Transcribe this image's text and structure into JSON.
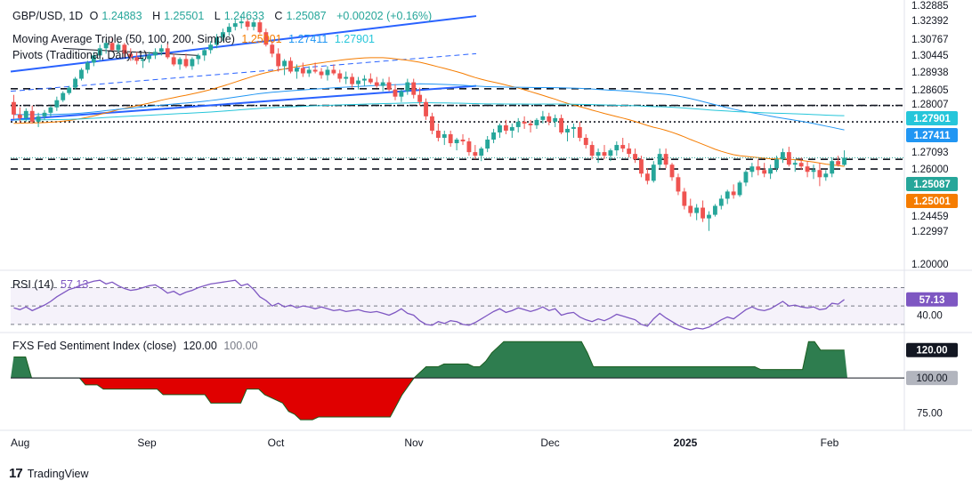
{
  "header": {
    "symbol": "GBP/USD, 1D",
    "open_label": "O",
    "open": "1.24883",
    "high_label": "H",
    "high": "1.25501",
    "low_label": "L",
    "low": "1.24633",
    "close_label": "C",
    "close": "1.25087",
    "change": "+0.00202 (+0.16%)"
  },
  "indicators": {
    "ma_label": "Moving Average Triple (50, 100, 200, Simple)",
    "ma50": "1.25001",
    "ma100": "1.27411",
    "ma200": "1.27901",
    "pivots_label": "Pivots (Traditional, Daily, 1)"
  },
  "rsi": {
    "label": "RSI (14)",
    "value": "57.13"
  },
  "sentiment": {
    "label": "FXS Fed Sentiment Index (close)",
    "value": "120.00",
    "baseline": "100.00"
  },
  "footer": {
    "brand": "TradingView"
  },
  "colors": {
    "up": "#26a69a",
    "down": "#ef5350",
    "ma50": "#f57c00",
    "ma100": "#2196f3",
    "ma200": "#26c6da",
    "trend": "#2962ff",
    "rsi": "#7e57c2",
    "fill_pos": "#2e7d4f",
    "fill_neg": "#e00000"
  },
  "chart_data": [
    {
      "type": "candlestick",
      "title": "GBP/USD, 1D",
      "x_ticks": [
        "Aug",
        "Sep",
        "Oct",
        "Nov",
        "Dec",
        "2025",
        "Feb"
      ],
      "y_ticks": [
        "1.32885",
        "1.32392",
        "1.30767",
        "1.30445",
        "1.28938",
        "1.28605",
        "1.28007",
        "1.27901",
        "1.27411",
        "1.27093",
        "1.26000",
        "1.25087",
        "1.25001",
        "1.24459",
        "1.22997",
        "1.20000"
      ],
      "ylim": [
        1.19,
        1.335
      ],
      "pivot_levels": [
        1.2894,
        1.2801,
        1.2709,
        1.25,
        1.2446
      ],
      "ohlc": [
        [
          1.282,
          1.286,
          1.2725,
          1.275
        ],
        [
          1.275,
          1.279,
          1.2705,
          1.273
        ],
        [
          1.273,
          1.2785,
          1.271,
          1.277
        ],
        [
          1.277,
          1.28,
          1.27,
          1.271
        ],
        [
          1.271,
          1.276,
          1.268,
          1.274
        ],
        [
          1.274,
          1.2775,
          1.272,
          1.276
        ],
        [
          1.276,
          1.28,
          1.274,
          1.279
        ],
        [
          1.279,
          1.285,
          1.277,
          1.283
        ],
        [
          1.283,
          1.288,
          1.282,
          1.287
        ],
        [
          1.287,
          1.291,
          1.286,
          1.29
        ],
        [
          1.29,
          1.296,
          1.289,
          1.295
        ],
        [
          1.295,
          1.301,
          1.294,
          1.3
        ],
        [
          1.3,
          1.305,
          1.298,
          1.304
        ],
        [
          1.304,
          1.31,
          1.302,
          1.308
        ],
        [
          1.308,
          1.314,
          1.305,
          1.312
        ],
        [
          1.312,
          1.317,
          1.309,
          1.315
        ],
        [
          1.315,
          1.318,
          1.31,
          1.311
        ],
        [
          1.311,
          1.316,
          1.309,
          1.314
        ],
        [
          1.314,
          1.315,
          1.307,
          1.309
        ],
        [
          1.309,
          1.312,
          1.305,
          1.307
        ],
        [
          1.307,
          1.31,
          1.303,
          1.305
        ],
        [
          1.305,
          1.308,
          1.301,
          1.306
        ],
        [
          1.306,
          1.31,
          1.304,
          1.308
        ],
        [
          1.308,
          1.312,
          1.306,
          1.31
        ],
        [
          1.31,
          1.314,
          1.308,
          1.312
        ],
        [
          1.312,
          1.315,
          1.306,
          1.307
        ],
        [
          1.307,
          1.309,
          1.302,
          1.303
        ],
        [
          1.303,
          1.307,
          1.3,
          1.306
        ],
        [
          1.306,
          1.309,
          1.301,
          1.302
        ],
        [
          1.302,
          1.307,
          1.3,
          1.306
        ],
        [
          1.306,
          1.309,
          1.303,
          1.308
        ],
        [
          1.308,
          1.312,
          1.305,
          1.311
        ],
        [
          1.311,
          1.316,
          1.309,
          1.314
        ],
        [
          1.314,
          1.32,
          1.312,
          1.318
        ],
        [
          1.318,
          1.323,
          1.316,
          1.321
        ],
        [
          1.321,
          1.326,
          1.319,
          1.324
        ],
        [
          1.324,
          1.328,
          1.322,
          1.326
        ],
        [
          1.326,
          1.33,
          1.323,
          1.327
        ],
        [
          1.327,
          1.329,
          1.322,
          1.324
        ],
        [
          1.324,
          1.328,
          1.322,
          1.3265
        ],
        [
          1.3265,
          1.328,
          1.32,
          1.321
        ],
        [
          1.321,
          1.323,
          1.313,
          1.314
        ],
        [
          1.314,
          1.316,
          1.307,
          1.309
        ],
        [
          1.309,
          1.312,
          1.299,
          1.302
        ],
        [
          1.302,
          1.306,
          1.297,
          1.305
        ],
        [
          1.305,
          1.307,
          1.298,
          1.299
        ],
        [
          1.299,
          1.303,
          1.295,
          1.301
        ],
        [
          1.301,
          1.304,
          1.296,
          1.298
        ],
        [
          1.298,
          1.302,
          1.296,
          1.3
        ],
        [
          1.3,
          1.304,
          1.298,
          1.299
        ],
        [
          1.299,
          1.301,
          1.295,
          1.297
        ],
        [
          1.297,
          1.302,
          1.294,
          1.3
        ],
        [
          1.3,
          1.303,
          1.297,
          1.298
        ],
        [
          1.298,
          1.3,
          1.293,
          1.295
        ],
        [
          1.295,
          1.299,
          1.292,
          1.296
        ],
        [
          1.296,
          1.298,
          1.29,
          1.292
        ],
        [
          1.292,
          1.296,
          1.289,
          1.294
        ],
        [
          1.294,
          1.297,
          1.291,
          1.295
        ],
        [
          1.295,
          1.298,
          1.292,
          1.293
        ],
        [
          1.293,
          1.296,
          1.29,
          1.291
        ],
        [
          1.291,
          1.295,
          1.288,
          1.293
        ],
        [
          1.293,
          1.296,
          1.288,
          1.289
        ],
        [
          1.289,
          1.292,
          1.283,
          1.285
        ],
        [
          1.285,
          1.289,
          1.282,
          1.288
        ],
        [
          1.288,
          1.295,
          1.286,
          1.293
        ],
        [
          1.293,
          1.295,
          1.284,
          1.286
        ],
        [
          1.286,
          1.29,
          1.28,
          1.282
        ],
        [
          1.282,
          1.284,
          1.272,
          1.274
        ],
        [
          1.274,
          1.276,
          1.264,
          1.266
        ],
        [
          1.266,
          1.27,
          1.26,
          1.262
        ],
        [
          1.262,
          1.266,
          1.258,
          1.264
        ],
        [
          1.264,
          1.266,
          1.257,
          1.259
        ],
        [
          1.259,
          1.262,
          1.255,
          1.261
        ],
        [
          1.261,
          1.264,
          1.258,
          1.26
        ],
        [
          1.26,
          1.262,
          1.252,
          1.254
        ],
        [
          1.254,
          1.258,
          1.25,
          1.252
        ],
        [
          1.252,
          1.257,
          1.249,
          1.256
        ],
        [
          1.256,
          1.263,
          1.254,
          1.261
        ],
        [
          1.261,
          1.267,
          1.259,
          1.265
        ],
        [
          1.265,
          1.27,
          1.262,
          1.269
        ],
        [
          1.269,
          1.272,
          1.264,
          1.266
        ],
        [
          1.266,
          1.27,
          1.262,
          1.268
        ],
        [
          1.268,
          1.273,
          1.265,
          1.271
        ],
        [
          1.271,
          1.274,
          1.267,
          1.27
        ],
        [
          1.27,
          1.272,
          1.265,
          1.269
        ],
        [
          1.269,
          1.273,
          1.267,
          1.272
        ],
        [
          1.272,
          1.277,
          1.27,
          1.274
        ],
        [
          1.274,
          1.276,
          1.269,
          1.271
        ],
        [
          1.271,
          1.275,
          1.268,
          1.273
        ],
        [
          1.273,
          1.275,
          1.264,
          1.265
        ],
        [
          1.265,
          1.269,
          1.26,
          1.267
        ],
        [
          1.267,
          1.27,
          1.262,
          1.268
        ],
        [
          1.268,
          1.271,
          1.26,
          1.262
        ],
        [
          1.262,
          1.264,
          1.256,
          1.258
        ],
        [
          1.258,
          1.26,
          1.25,
          1.252
        ],
        [
          1.252,
          1.256,
          1.248,
          1.254
        ],
        [
          1.254,
          1.258,
          1.25,
          1.252
        ],
        [
          1.252,
          1.256,
          1.249,
          1.255
        ],
        [
          1.255,
          1.26,
          1.252,
          1.258
        ],
        [
          1.258,
          1.262,
          1.254,
          1.256
        ],
        [
          1.256,
          1.259,
          1.251,
          1.253
        ],
        [
          1.253,
          1.256,
          1.248,
          1.25
        ],
        [
          1.25,
          1.252,
          1.24,
          1.242
        ],
        [
          1.242,
          1.245,
          1.236,
          1.238
        ],
        [
          1.238,
          1.249,
          1.237,
          1.247
        ],
        [
          1.247,
          1.256,
          1.245,
          1.253
        ],
        [
          1.253,
          1.256,
          1.245,
          1.247
        ],
        [
          1.247,
          1.248,
          1.238,
          1.24
        ],
        [
          1.24,
          1.242,
          1.23,
          1.232
        ],
        [
          1.232,
          1.234,
          1.222,
          1.224
        ],
        [
          1.224,
          1.228,
          1.218,
          1.22
        ],
        [
          1.22,
          1.225,
          1.216,
          1.223
        ],
        [
          1.223,
          1.227,
          1.215,
          1.217
        ],
        [
          1.217,
          1.221,
          1.21,
          1.219
        ],
        [
          1.219,
          1.225,
          1.218,
          1.224
        ],
        [
          1.224,
          1.23,
          1.222,
          1.228
        ],
        [
          1.228,
          1.233,
          1.225,
          1.232
        ],
        [
          1.232,
          1.236,
          1.228,
          1.23
        ],
        [
          1.23,
          1.238,
          1.229,
          1.237
        ],
        [
          1.237,
          1.244,
          1.235,
          1.243
        ],
        [
          1.243,
          1.248,
          1.24,
          1.246
        ],
        [
          1.246,
          1.25,
          1.241,
          1.244
        ],
        [
          1.244,
          1.248,
          1.24,
          1.242
        ],
        [
          1.242,
          1.247,
          1.239,
          1.245
        ],
        [
          1.245,
          1.252,
          1.243,
          1.25
        ],
        [
          1.25,
          1.256,
          1.248,
          1.254
        ],
        [
          1.254,
          1.257,
          1.246,
          1.247
        ],
        [
          1.247,
          1.25,
          1.243,
          1.248
        ],
        [
          1.248,
          1.251,
          1.244,
          1.246
        ],
        [
          1.246,
          1.249,
          1.24,
          1.243
        ],
        [
          1.243,
          1.247,
          1.239,
          1.244
        ],
        [
          1.244,
          1.248,
          1.235,
          1.24
        ],
        [
          1.24,
          1.244,
          1.238,
          1.242
        ],
        [
          1.242,
          1.251,
          1.24,
          1.249
        ],
        [
          1.249,
          1.252,
          1.246,
          1.2469
        ],
        [
          1.2469,
          1.255,
          1.2463,
          1.2509
        ]
      ]
    },
    {
      "type": "line",
      "title": "RSI (14)",
      "ylim": [
        25,
        85
      ],
      "y_ticks": [
        "57.13",
        "40.00"
      ],
      "band": [
        30,
        70
      ],
      "values": [
        48,
        46,
        49,
        45,
        48,
        51,
        55,
        60,
        64,
        68,
        70,
        73,
        75,
        77,
        78,
        74,
        76,
        72,
        69,
        67,
        68,
        70,
        72,
        73,
        69,
        64,
        66,
        62,
        65,
        67,
        70,
        72,
        74,
        75,
        76,
        77,
        78,
        72,
        74,
        68,
        60,
        56,
        50,
        53,
        49,
        51,
        48,
        50,
        49,
        47,
        49,
        47,
        45,
        46,
        44,
        45,
        46,
        44,
        43,
        44,
        42,
        40,
        43,
        47,
        42,
        40,
        34,
        30,
        29,
        33,
        31,
        34,
        33,
        30,
        29,
        32,
        36,
        40,
        44,
        47,
        43,
        45,
        48,
        46,
        44,
        46,
        49,
        45,
        47,
        40,
        42,
        43,
        38,
        35,
        33,
        36,
        34,
        37,
        41,
        39,
        37,
        35,
        30,
        28,
        36,
        42,
        37,
        33,
        29,
        26,
        24,
        26,
        25,
        27,
        31,
        35,
        38,
        36,
        41,
        46,
        49,
        46,
        45,
        47,
        51,
        55,
        50,
        51,
        49,
        48,
        49,
        46,
        47,
        53,
        52,
        57
      ]
    },
    {
      "type": "area",
      "title": "FXS Fed Sentiment Index (close)",
      "ylim": [
        65,
        130
      ],
      "baseline": 100,
      "y_ticks": [
        "120.00",
        "100.00",
        "75.00"
      ],
      "values": [
        115,
        115,
        115,
        100,
        100,
        100,
        100,
        100,
        100,
        100,
        100,
        100,
        95,
        95,
        95,
        92,
        92,
        92,
        92,
        92,
        92,
        92,
        92,
        92,
        92,
        88,
        88,
        88,
        88,
        88,
        88,
        88,
        88,
        82,
        82,
        82,
        82,
        82,
        82,
        92,
        92,
        92,
        88,
        86,
        84,
        82,
        76,
        74,
        70,
        70,
        70,
        72,
        72,
        72,
        72,
        72,
        72,
        72,
        72,
        72,
        72,
        72,
        72,
        72,
        80,
        88,
        94,
        100,
        104,
        108,
        108,
        108,
        110,
        110,
        110,
        110,
        110,
        108,
        108,
        112,
        118,
        122,
        126,
        126,
        126,
        126,
        126,
        126,
        126,
        126,
        126,
        126,
        126,
        126,
        126,
        126,
        118,
        108,
        108,
        108,
        108,
        108,
        108,
        108,
        108,
        108,
        108,
        108,
        108,
        108,
        108,
        108,
        108,
        108,
        108,
        108,
        108,
        108,
        108,
        108,
        108,
        108,
        108,
        108,
        108,
        106,
        106,
        106,
        106,
        106,
        106,
        106,
        106,
        126,
        126,
        120,
        120,
        120,
        120,
        120
      ]
    }
  ]
}
